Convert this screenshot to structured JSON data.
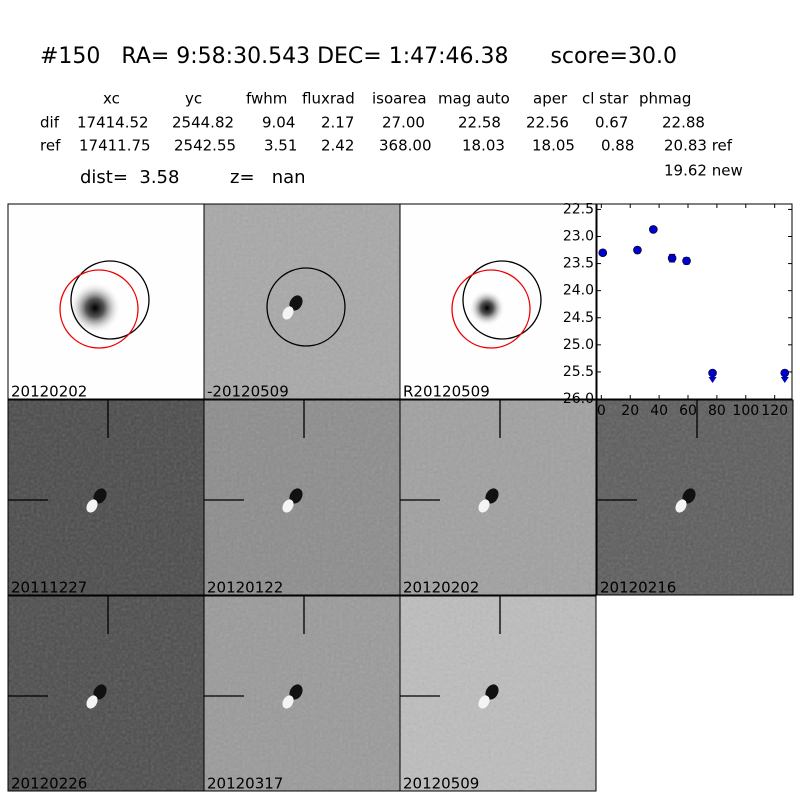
{
  "header": {
    "title": "#150   RA= 9:58:30.543 DEC= 1:47:46.38      score=30.0"
  },
  "table": {
    "columns": [
      "xc",
      "yc",
      "fwhm",
      "fluxrad",
      "isoarea",
      "mag auto",
      "aper",
      "cl star",
      "phmag"
    ],
    "rows": [
      [
        "dif",
        "17414.52",
        "2544.82",
        "9.04",
        "2.17",
        "27.00",
        "22.58",
        "22.56",
        "0.67",
        "22.88"
      ],
      [
        "ref",
        "17411.75",
        "2542.55",
        "3.51",
        "2.42",
        "368.00",
        "18.03",
        "18.05",
        "0.88",
        "20.83 ref"
      ]
    ],
    "extra": "19.62 new"
  },
  "info": {
    "dist": "dist=  3.58",
    "z": "z=   nan"
  },
  "stamps": [
    {
      "label": "20120202",
      "color": "#000000"
    },
    {
      "label": "-20120509",
      "color": "#000000"
    },
    {
      "label": "R20120509",
      "color": "#000000"
    },
    {
      "label": "20111227",
      "color": "#000000"
    },
    {
      "label": "20120122",
      "color": "#000000"
    },
    {
      "label": "20120202",
      "color": "#ff0000"
    },
    {
      "label": "20120216",
      "color": "#000000"
    },
    {
      "label": "20120226",
      "color": "#000000"
    },
    {
      "label": "20120317",
      "color": "#000000"
    },
    {
      "label": "20120509",
      "color": "#000000"
    }
  ],
  "chart_data": {
    "type": "scatter",
    "xlim": [
      -3,
      132
    ],
    "xticks": [
      0,
      20,
      40,
      60,
      80,
      100,
      120
    ],
    "ylim": [
      26.0,
      22.4
    ],
    "yticks": [
      22.5,
      {
        "value": 23,
        "label": "23.0"
      },
      23.5,
      {
        "value": 24,
        "label": "24.0"
      },
      24.5,
      {
        "value": 25,
        "label": "25.0"
      },
      25.5,
      {
        "value": 26,
        "label": "26.0"
      }
    ],
    "series": [
      {
        "color": "#0000cc",
        "x": [
          1,
          25,
          36,
          49,
          59
        ],
        "values": [
          23.3,
          23.25,
          22.87,
          23.4,
          23.45
        ],
        "errors": [
          0.05,
          0.05,
          0.04,
          0.07,
          0.06
        ]
      },
      {
        "color": "#0000cc",
        "marker": "upper-limit",
        "x": [
          77,
          127
        ],
        "values": [
          25.52,
          25.52
        ]
      }
    ]
  }
}
